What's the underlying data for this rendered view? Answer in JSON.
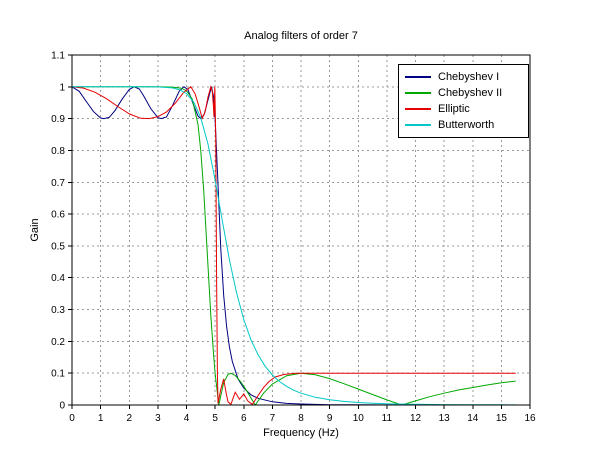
{
  "figure": {
    "background": "#ffffff"
  },
  "chart_data": {
    "type": "line",
    "title": "Analog filters of order 7",
    "xlabel": "Frequency (Hz)",
    "ylabel": "Gain",
    "xlim": [
      0,
      16
    ],
    "ylim": [
      0,
      1.1
    ],
    "xticks": [
      0,
      1,
      2,
      3,
      4,
      5,
      6,
      7,
      8,
      9,
      10,
      11,
      12,
      13,
      14,
      15,
      16
    ],
    "yticks": [
      0,
      0.1,
      0.2,
      0.3,
      0.4,
      0.5,
      0.6,
      0.7,
      0.8,
      0.9,
      1,
      1.1
    ],
    "grid": true,
    "grid_color": "#9a9a9a",
    "axis_color": "#000000",
    "legend_position": "top-right",
    "series": [
      {
        "name": "Chebyshev I",
        "color": "#000080",
        "points": [
          [
            0,
            1
          ],
          [
            0.25,
            0.986
          ],
          [
            0.5,
            0.954
          ],
          [
            0.75,
            0.922
          ],
          [
            1,
            0.902
          ],
          [
            1.11,
            0.9
          ],
          [
            1.3,
            0.904
          ],
          [
            1.5,
            0.925
          ],
          [
            1.75,
            0.961
          ],
          [
            2,
            0.992
          ],
          [
            2.17,
            1
          ],
          [
            2.35,
            0.993
          ],
          [
            2.5,
            0.972
          ],
          [
            2.75,
            0.932
          ],
          [
            3,
            0.903
          ],
          [
            3.12,
            0.9
          ],
          [
            3.3,
            0.905
          ],
          [
            3.5,
            0.939
          ],
          [
            3.75,
            0.987
          ],
          [
            3.91,
            1
          ],
          [
            4.05,
            0.992
          ],
          [
            4.25,
            0.942
          ],
          [
            4.4,
            0.908
          ],
          [
            4.5,
            0.9
          ],
          [
            4.62,
            0.913
          ],
          [
            4.75,
            0.959
          ],
          [
            4.875,
            1
          ],
          [
            4.95,
            0.967
          ],
          [
            4.98,
            0.931
          ],
          [
            5,
            0.9
          ],
          [
            5.1,
            0.693
          ],
          [
            5.2,
            0.49
          ],
          [
            5.3,
            0.344
          ],
          [
            5.4,
            0.247
          ],
          [
            5.5,
            0.183
          ],
          [
            5.6,
            0.137
          ],
          [
            5.8,
            0.082
          ],
          [
            6,
            0.053
          ],
          [
            6.25,
            0.032
          ],
          [
            6.5,
            0.021
          ],
          [
            7,
            0.01
          ],
          [
            7.5,
            0.005
          ],
          [
            8,
            0.003
          ],
          [
            9,
            0.001
          ],
          [
            10,
            0.0005
          ],
          [
            11,
            0.0002
          ],
          [
            12,
            0.0001
          ],
          [
            13,
            0.0001
          ],
          [
            14,
            0
          ],
          [
            15,
            0
          ],
          [
            15.5,
            0
          ]
        ]
      },
      {
        "name": "Chebyshev II",
        "color": "#00a800",
        "points": [
          [
            0,
            1
          ],
          [
            1,
            1
          ],
          [
            2,
            1
          ],
          [
            3,
            1
          ],
          [
            3.5,
            0.999
          ],
          [
            3.8,
            0.996
          ],
          [
            4,
            0.988
          ],
          [
            4.2,
            0.962
          ],
          [
            4.4,
            0.882
          ],
          [
            4.5,
            0.798
          ],
          [
            4.6,
            0.675
          ],
          [
            4.7,
            0.52
          ],
          [
            4.85,
            0.282
          ],
          [
            4.95,
            0.153
          ],
          [
            5,
            0.0995
          ],
          [
            5.13,
            0
          ],
          [
            5.3,
            0.071
          ],
          [
            5.45,
            0.096
          ],
          [
            5.55,
            0.0995
          ],
          [
            5.7,
            0.093
          ],
          [
            5.9,
            0.072
          ],
          [
            6.1,
            0.045
          ],
          [
            6.4,
            0
          ],
          [
            6.7,
            0.038
          ],
          [
            7,
            0.066
          ],
          [
            7.5,
            0.092
          ],
          [
            8,
            0.0995
          ],
          [
            8.5,
            0.095
          ],
          [
            9,
            0.083
          ],
          [
            9.5,
            0.067
          ],
          [
            10,
            0.05
          ],
          [
            10.5,
            0.033
          ],
          [
            11,
            0.016
          ],
          [
            11.52,
            0
          ],
          [
            12,
            0.013
          ],
          [
            12.5,
            0.026
          ],
          [
            13,
            0.037
          ],
          [
            13.5,
            0.047
          ],
          [
            14,
            0.055
          ],
          [
            14.5,
            0.063
          ],
          [
            15,
            0.07
          ],
          [
            15.5,
            0.075
          ]
        ]
      },
      {
        "name": "Elliptic",
        "color": "#e60000",
        "points": [
          [
            0,
            1
          ],
          [
            0.4,
            0.996
          ],
          [
            0.8,
            0.983
          ],
          [
            1.2,
            0.963
          ],
          [
            1.6,
            0.938
          ],
          [
            2,
            0.915
          ],
          [
            2.4,
            0.901
          ],
          [
            2.7,
            0.9
          ],
          [
            3,
            0.906
          ],
          [
            3.3,
            0.921
          ],
          [
            3.6,
            0.948
          ],
          [
            3.9,
            0.982
          ],
          [
            4.15,
            1
          ],
          [
            4.3,
            0.978
          ],
          [
            4.45,
            0.933
          ],
          [
            4.55,
            0.901
          ],
          [
            4.65,
            0.921
          ],
          [
            4.75,
            0.968
          ],
          [
            4.85,
            1
          ],
          [
            4.9,
            0.985
          ],
          [
            4.94,
            0.94
          ],
          [
            4.96,
            0.905
          ],
          [
            4.99,
            1
          ],
          [
            5.02,
            0.85
          ],
          [
            5.05,
            0.4
          ],
          [
            5.08,
            0.1
          ],
          [
            5.1,
            0.005
          ],
          [
            5.2,
            0.05
          ],
          [
            5.3,
            0.082
          ],
          [
            5.38,
            0.04
          ],
          [
            5.45,
            0.01
          ],
          [
            5.55,
            0.002
          ],
          [
            5.7,
            0.04
          ],
          [
            5.85,
            0.018
          ],
          [
            6,
            0.035
          ],
          [
            6.15,
            0.012
          ],
          [
            6.3,
            0.002
          ],
          [
            6.5,
            0.03
          ],
          [
            6.7,
            0.056
          ],
          [
            6.9,
            0.075
          ],
          [
            7.1,
            0.088
          ],
          [
            7.4,
            0.096
          ],
          [
            7.8,
            0.0995
          ],
          [
            8.5,
            0.0995
          ],
          [
            9.5,
            0.0995
          ],
          [
            10.5,
            0.0995
          ],
          [
            11.5,
            0.0995
          ],
          [
            12.5,
            0.0995
          ],
          [
            13.5,
            0.0995
          ],
          [
            14.5,
            0.0995
          ],
          [
            15.5,
            0.0995
          ]
        ]
      },
      {
        "name": "Butterworth",
        "color": "#00c8c8",
        "points": [
          [
            0,
            1
          ],
          [
            1,
            1
          ],
          [
            2,
            1
          ],
          [
            2.5,
            1
          ],
          [
            3,
            0.9996
          ],
          [
            3.5,
            0.9966
          ],
          [
            3.75,
            0.9912
          ],
          [
            4,
            0.9787
          ],
          [
            4.25,
            0.9522
          ],
          [
            4.5,
            0.9025
          ],
          [
            4.75,
            0.8199
          ],
          [
            5,
            0.7071
          ],
          [
            5.25,
            0.5793
          ],
          [
            5.5,
            0.4566
          ],
          [
            5.75,
            0.3519
          ],
          [
            6,
            0.2688
          ],
          [
            6.25,
            0.2053
          ],
          [
            6.5,
            0.1574
          ],
          [
            6.75,
            0.1215
          ],
          [
            7,
            0.0944
          ],
          [
            7.25,
            0.074
          ],
          [
            7.5,
            0.0584
          ],
          [
            7.75,
            0.0465
          ],
          [
            8,
            0.0372
          ],
          [
            8.5,
            0.0243
          ],
          [
            9,
            0.0163
          ],
          [
            9.5,
            0.0112
          ],
          [
            10,
            0.0078
          ],
          [
            10.5,
            0.0056
          ],
          [
            11,
            0.004
          ],
          [
            11.5,
            0.0029
          ],
          [
            12,
            0.0022
          ],
          [
            13,
            0.0013
          ],
          [
            14,
            0.0008
          ],
          [
            15,
            0.0005
          ],
          [
            15.5,
            0.0004
          ]
        ]
      }
    ]
  }
}
